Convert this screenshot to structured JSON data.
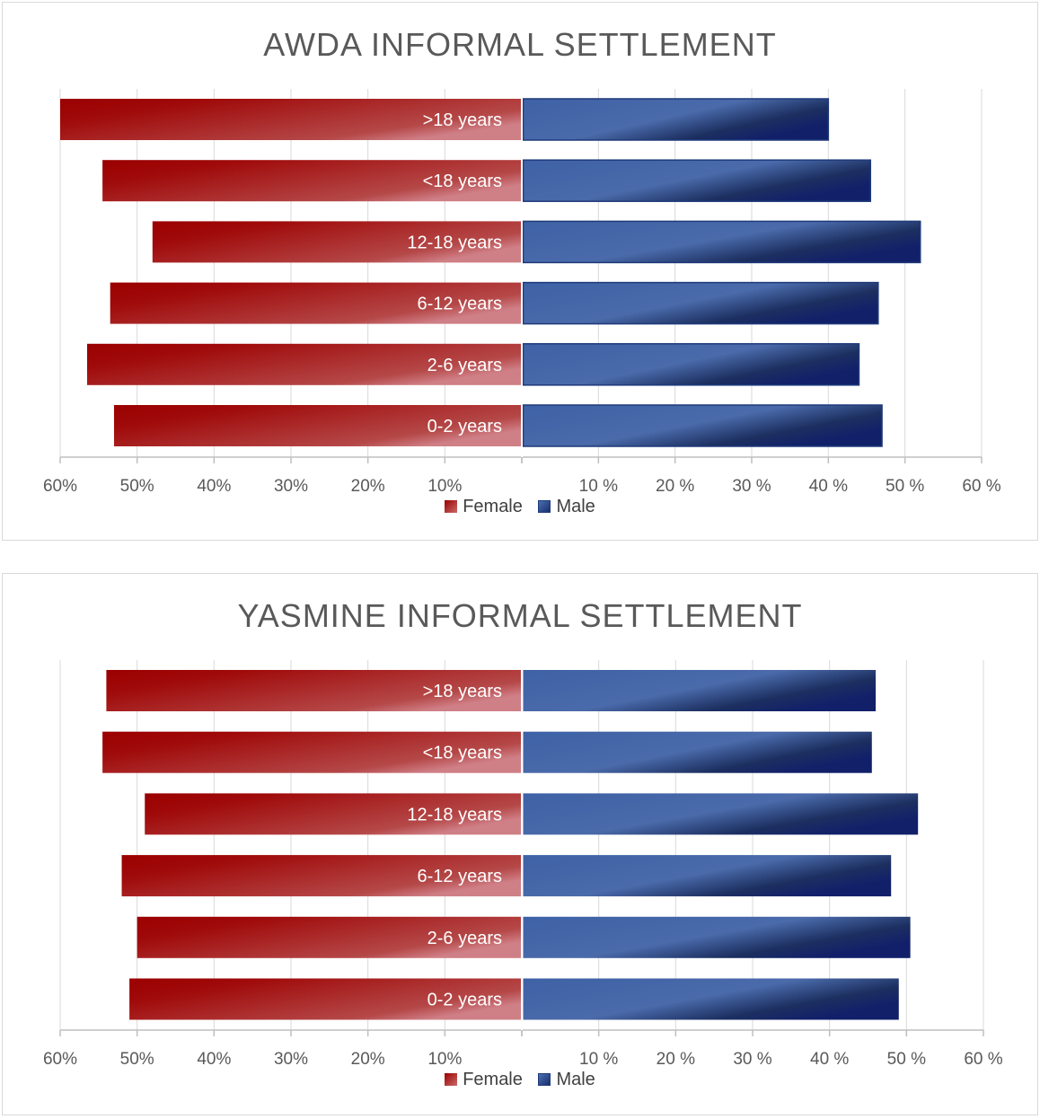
{
  "legend": {
    "female": "Female",
    "male": "Male"
  },
  "colors": {
    "female": "#9b0000",
    "male": "#2f4f94",
    "grid": "#d9d9d9",
    "axis": "#bfbfbf",
    "text": "#595959"
  },
  "chart_data": [
    {
      "type": "bar",
      "orientation": "horizontal-diverging",
      "title": "AWDA INFORMAL SETTLEMENT",
      "categories": [
        "0-2 years",
        "2-6 years",
        "6-12 years",
        "12-18 years",
        "<18 years",
        ">18 years"
      ],
      "series": [
        {
          "name": "Female",
          "side": "left",
          "values": [
            53,
            56.5,
            53.5,
            48,
            54.5,
            60
          ]
        },
        {
          "name": "Male",
          "side": "right",
          "values": [
            47,
            44,
            46.5,
            52,
            45.5,
            40
          ]
        }
      ],
      "left_ticks": [
        "60%",
        "50%",
        "40%",
        "30%",
        "20%",
        "10%"
      ],
      "right_ticks": [
        "10 %",
        "20 %",
        "30 %",
        "40 %",
        "50 %",
        "60 %"
      ],
      "xlim": [
        0,
        60
      ],
      "grid": true,
      "legend_position": "bottom"
    },
    {
      "type": "bar",
      "orientation": "horizontal-diverging",
      "title": "YASMINE INFORMAL SETTLEMENT",
      "categories": [
        "0-2 years",
        "2-6 years",
        "6-12 years",
        "12-18 years",
        "<18 years",
        ">18 years"
      ],
      "series": [
        {
          "name": "Female",
          "side": "left",
          "values": [
            51,
            50,
            52,
            49,
            54.5,
            54
          ]
        },
        {
          "name": "Male",
          "side": "right",
          "values": [
            49,
            50.5,
            48,
            51.5,
            45.5,
            46
          ]
        }
      ],
      "left_ticks": [
        "60%",
        "50%",
        "40%",
        "30%",
        "20%",
        "10%"
      ],
      "right_ticks": [
        "10 %",
        "20 %",
        "30 %",
        "40 %",
        "50 %",
        "60 %"
      ],
      "xlim": [
        0,
        60
      ],
      "grid": true,
      "legend_position": "bottom"
    }
  ]
}
